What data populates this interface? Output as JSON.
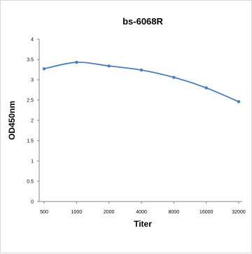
{
  "chart_data": {
    "type": "line",
    "title": "bs-6068R",
    "xlabel": "Titer",
    "ylabel": "OD450nm",
    "categories": [
      "500",
      "1000",
      "2000",
      "4000",
      "8000",
      "16000",
      "32000"
    ],
    "y_ticks": [
      "0",
      "0.5",
      "1",
      "1.5",
      "2",
      "2.5",
      "3",
      "3.5",
      "4"
    ],
    "ylim": [
      0,
      4
    ],
    "grid": false,
    "legend": "none",
    "series": [
      {
        "values": [
          3.27,
          3.43,
          3.34,
          3.24,
          3.06,
          2.8,
          2.46
        ],
        "color": "#4a7ebb"
      }
    ]
  }
}
